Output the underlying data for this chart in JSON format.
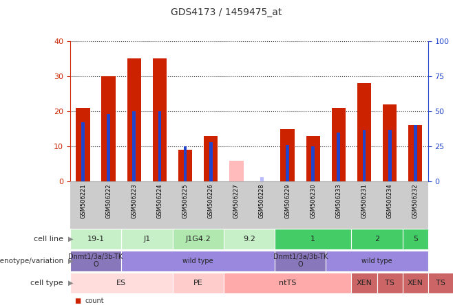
{
  "title": "GDS4173 / 1459475_at",
  "samples": [
    "GSM506221",
    "GSM506222",
    "GSM506223",
    "GSM506224",
    "GSM506225",
    "GSM506226",
    "GSM506227",
    "GSM506228",
    "GSM506229",
    "GSM506230",
    "GSM506233",
    "GSM506231",
    "GSM506234",
    "GSM506232"
  ],
  "count_values": [
    21,
    30,
    35,
    35,
    9,
    13,
    0,
    0,
    15,
    13,
    21,
    28,
    22,
    16
  ],
  "percentile_values": [
    42,
    48,
    50,
    50,
    25,
    28,
    0,
    0,
    26,
    25,
    35,
    37,
    37,
    40
  ],
  "absent_value": [
    0,
    0,
    0,
    0,
    0,
    0,
    6,
    0,
    0,
    0,
    0,
    0,
    0,
    0
  ],
  "absent_rank": [
    0,
    0,
    0,
    0,
    0,
    0,
    0,
    3,
    0,
    0,
    0,
    0,
    0,
    0
  ],
  "ylim_left": [
    0,
    40
  ],
  "ylim_right": [
    0,
    100
  ],
  "yticks_left": [
    0,
    10,
    20,
    30,
    40
  ],
  "yticks_right": [
    0,
    25,
    50,
    75,
    100
  ],
  "cell_line_groups": [
    {
      "label": "19-1",
      "start": 0,
      "end": 2,
      "color": "#c8f0c8"
    },
    {
      "label": "J1",
      "start": 2,
      "end": 4,
      "color": "#c8f0c8"
    },
    {
      "label": "J1G4.2",
      "start": 4,
      "end": 6,
      "color": "#b0e8b0"
    },
    {
      "label": "9.2",
      "start": 6,
      "end": 8,
      "color": "#c8f0c8"
    },
    {
      "label": "1",
      "start": 8,
      "end": 11,
      "color": "#44cc66"
    },
    {
      "label": "2",
      "start": 11,
      "end": 13,
      "color": "#44cc66"
    },
    {
      "label": "5",
      "start": 13,
      "end": 14,
      "color": "#44cc66"
    }
  ],
  "genotype_groups": [
    {
      "label": "Dnmt1/3a/3b-TK\nO",
      "start": 0,
      "end": 2,
      "color": "#8877cc"
    },
    {
      "label": "wild type",
      "start": 2,
      "end": 8,
      "color": "#8877cc"
    },
    {
      "label": "Dnmt1/3a/3b-TK\nO",
      "start": 8,
      "end": 10,
      "color": "#8877cc"
    },
    {
      "label": "wild type",
      "start": 10,
      "end": 14,
      "color": "#8877cc"
    }
  ],
  "celltype_groups": [
    {
      "label": "ES",
      "start": 0,
      "end": 4,
      "color": "#ffdddd"
    },
    {
      "label": "PE",
      "start": 4,
      "end": 6,
      "color": "#ffcccc"
    },
    {
      "label": "ntTS",
      "start": 6,
      "end": 11,
      "color": "#ffaaaa"
    },
    {
      "label": "XEN",
      "start": 11,
      "end": 12,
      "color": "#cc6666"
    },
    {
      "label": "TS",
      "start": 12,
      "end": 13,
      "color": "#cc6666"
    },
    {
      "label": "XEN",
      "start": 13,
      "end": 14,
      "color": "#cc6666"
    },
    {
      "label": "TS",
      "start": 14,
      "end": 15,
      "color": "#cc6666"
    }
  ],
  "bar_color": "#cc2200",
  "absent_val_color": "#ffbbbb",
  "absent_rank_color": "#bbbbff",
  "percentile_color": "#2244cc",
  "bg_color": "#ffffff",
  "label_color_left": "#cc2200",
  "label_color_right": "#2244cc",
  "tick_bg_color": "#cccccc",
  "row_label_fontsize": 8,
  "annot_fontsize": 8
}
